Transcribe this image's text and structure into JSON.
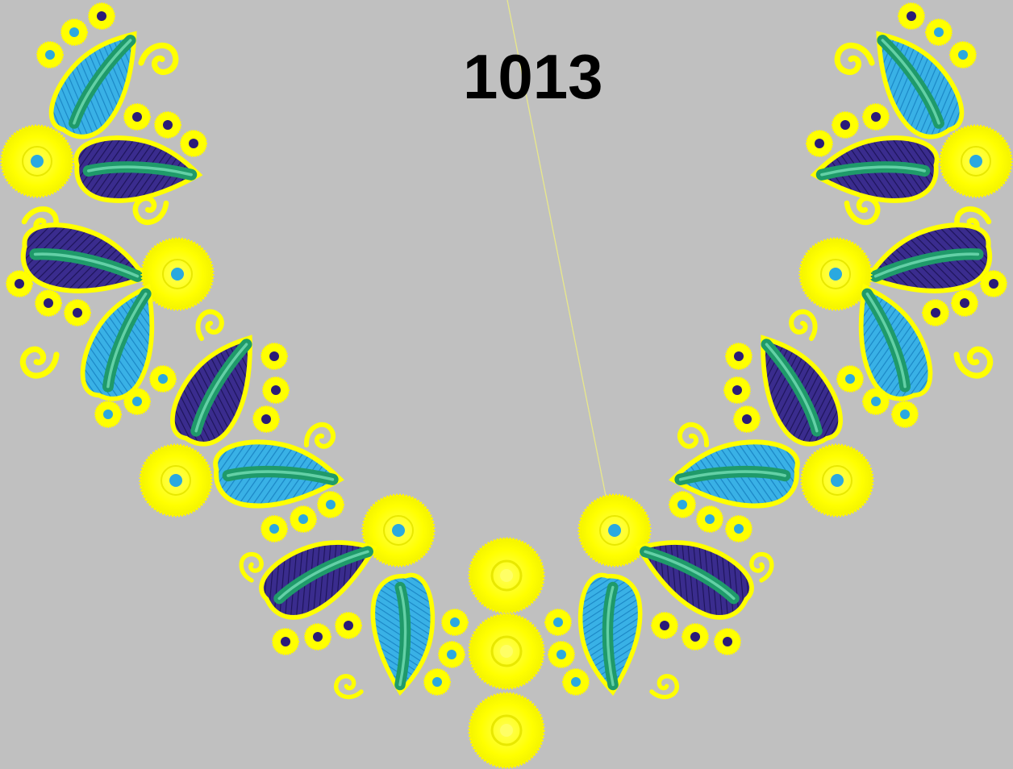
{
  "design": {
    "number": "1013"
  },
  "colors": {
    "background": "#c0c0c0",
    "thread_yellow": "#ffff00",
    "thread_navy": "#2a1b78",
    "thread_sky": "#2aa9e0",
    "thread_green": "#1f9a6a",
    "text": "#000000"
  },
  "motifs": {
    "paisley": "paisley-motif",
    "flower": "yellow-flower-motif",
    "dot": "small-dot-motif",
    "swirl": "swirl-motif"
  }
}
